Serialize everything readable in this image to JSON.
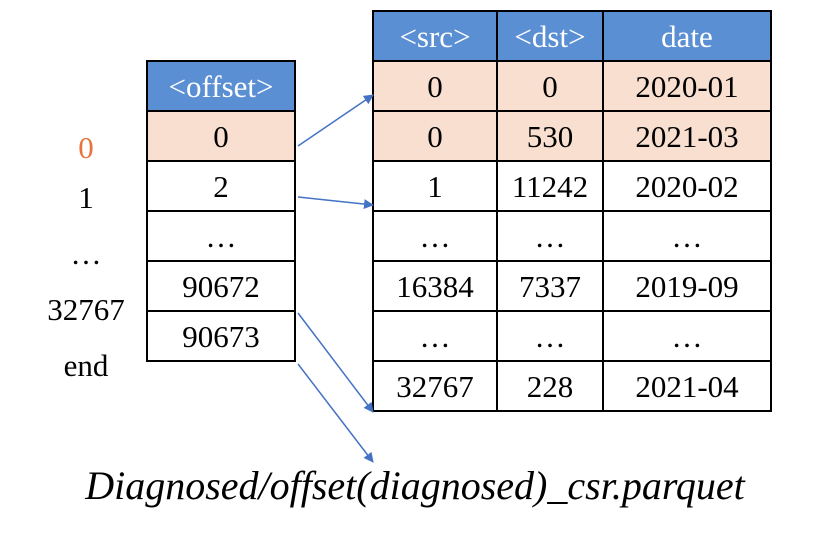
{
  "offset_table": {
    "header": "<offset>",
    "row_labels": [
      "0",
      "1",
      "…",
      "32767",
      "end"
    ],
    "values": [
      "0",
      "2",
      "…",
      "90672",
      "90673"
    ],
    "highlight_row": 0,
    "accent_label_color": "#e8743b"
  },
  "csr_table": {
    "headers": [
      "<src>",
      "<dst>",
      "date"
    ],
    "rows": [
      [
        "0",
        "0",
        "2020-01"
      ],
      [
        "0",
        "530",
        "2021-03"
      ],
      [
        "1",
        "11242",
        "2020-02"
      ],
      [
        "…",
        "…",
        "…"
      ],
      [
        "16384",
        "7337",
        "2019-09"
      ],
      [
        "…",
        "…",
        "…"
      ],
      [
        "32767",
        "228",
        "2021-04"
      ]
    ],
    "highlight_rows": [
      0,
      1
    ]
  },
  "colors": {
    "header_fill": "#5b8fd3",
    "highlight_fill": "#f9dfcf",
    "arrow": "#4472c4"
  },
  "caption": "Diagnosed/offset(diagnosed)_csr.parquet"
}
